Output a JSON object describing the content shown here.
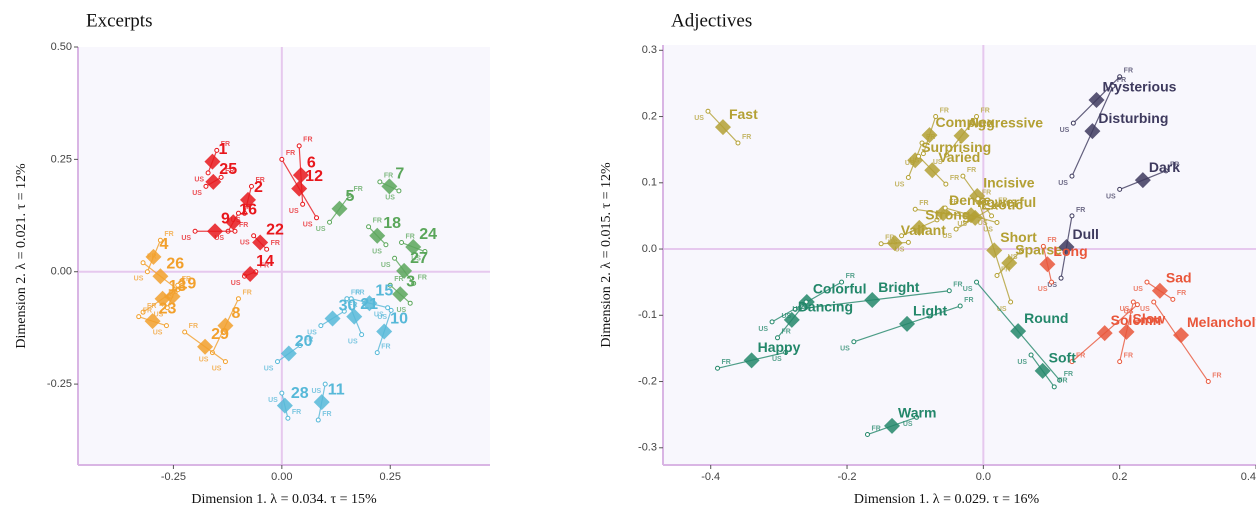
{
  "chart_data": [
    {
      "type": "scatter",
      "title": "Excerpts",
      "xlabel": "Dimension 1.   λ = 0.034.   τ = 15%",
      "ylabel": "Dimension 2.   λ = 0.021.   τ = 12%",
      "xlim": [
        -0.47,
        0.48
      ],
      "ylim": [
        -0.43,
        0.5
      ],
      "xticks": [
        -0.25,
        {
          "value": 0,
          "label": "0.00"
        },
        0.25
      ],
      "yticks": [
        -0.25,
        {
          "value": 0,
          "label": "0.00"
        },
        0.25,
        {
          "value": 0.5,
          "label": "0.50"
        }
      ],
      "partial_labels": [
        "US",
        "FR"
      ],
      "series": [
        {
          "color": "#e8171c",
          "labels": [
            "1",
            "25",
            "2",
            "16",
            "9",
            "6",
            "12",
            "22",
            "14"
          ],
          "x": [
            -0.16,
            -0.158,
            -0.078,
            -0.112,
            -0.154,
            0.044,
            0.04,
            -0.05,
            -0.073
          ],
          "y": [
            0.245,
            0.2,
            0.16,
            0.11,
            0.09,
            0.215,
            0.185,
            0.065,
            -0.005
          ],
          "us_x": [
            -0.17,
            -0.175,
            -0.086,
            -0.124,
            -0.2,
            0.048,
            0.08,
            -0.065,
            -0.086
          ],
          "us_y": [
            0.22,
            0.19,
            0.13,
            0.09,
            0.09,
            0.15,
            0.12,
            0.08,
            -0.01
          ],
          "fr_x": [
            -0.15,
            -0.14,
            -0.07,
            -0.1,
            -0.108,
            0.04,
            0.0,
            -0.035,
            -0.06
          ],
          "fr_y": [
            0.27,
            0.21,
            0.19,
            0.13,
            0.09,
            0.28,
            0.25,
            0.05,
            0.0
          ]
        },
        {
          "color": "#f2a02c",
          "labels": [
            "4",
            "26",
            "19",
            "13",
            "23",
            "8",
            "29"
          ],
          "x": [
            -0.296,
            -0.28,
            -0.252,
            -0.275,
            -0.298,
            -0.13,
            -0.177
          ],
          "y": [
            0.033,
            -0.01,
            -0.055,
            -0.06,
            -0.11,
            -0.12,
            -0.167
          ],
          "us_x": [
            -0.31,
            -0.24,
            -0.264,
            -0.23,
            -0.266,
            -0.16,
            -0.13
          ],
          "us_y": [
            0.0,
            -0.04,
            -0.08,
            -0.03,
            -0.12,
            -0.18,
            -0.2
          ],
          "fr_x": [
            -0.28,
            -0.32,
            -0.24,
            -0.32,
            -0.33,
            -0.1,
            -0.224
          ],
          "fr_y": [
            0.07,
            0.02,
            -0.03,
            -0.09,
            -0.1,
            -0.06,
            -0.134
          ]
        },
        {
          "color": "#5aa65a",
          "labels": [
            "5",
            "7",
            "18",
            "24",
            "27",
            "3"
          ],
          "x": [
            0.133,
            0.248,
            0.22,
            0.303,
            0.282,
            0.273
          ],
          "y": [
            0.14,
            0.19,
            0.08,
            0.055,
            0.002,
            -0.05
          ],
          "us_x": [
            0.11,
            0.27,
            0.24,
            0.33,
            0.26,
            0.296
          ],
          "us_y": [
            0.11,
            0.18,
            0.06,
            0.045,
            0.03,
            -0.07
          ],
          "fr_x": [
            0.156,
            0.226,
            0.2,
            0.276,
            0.304,
            0.25
          ],
          "fr_y": [
            0.17,
            0.2,
            0.1,
            0.065,
            -0.026,
            -0.03
          ]
        },
        {
          "color": "#56b8d8",
          "labels": [
            "15",
            "21",
            "30",
            "10",
            "20",
            "28",
            "11"
          ],
          "x": [
            0.202,
            0.167,
            0.117,
            0.236,
            0.016,
            0.007,
            0.092
          ],
          "y": [
            -0.07,
            -0.1,
            -0.104,
            -0.133,
            -0.182,
            -0.298,
            -0.29
          ],
          "us_x": [
            0.244,
            0.184,
            0.09,
            0.252,
            -0.01,
            0.0,
            0.1
          ],
          "us_y": [
            -0.08,
            -0.14,
            -0.12,
            -0.086,
            -0.2,
            -0.27,
            -0.25
          ],
          "fr_x": [
            0.16,
            0.15,
            0.144,
            0.22,
            0.042,
            0.014,
            0.084
          ],
          "fr_y": [
            -0.06,
            -0.06,
            -0.088,
            -0.18,
            -0.164,
            -0.326,
            -0.33
          ]
        }
      ]
    },
    {
      "type": "scatter",
      "title": "Adjectives",
      "xlabel": "Dimension 1.   λ = 0.029.   τ = 16%",
      "ylabel": "Dimension 2.   λ = 0.015.   τ = 12%",
      "xlim": [
        -0.47,
        0.4
      ],
      "ylim": [
        -0.326,
        0.308
      ],
      "xticks": [
        -0.4,
        -0.2,
        {
          "value": 0,
          "label": "0.0"
        },
        0.2,
        0.4
      ],
      "yticks": [
        -0.3,
        -0.2,
        -0.1,
        {
          "value": 0,
          "label": "0.0"
        },
        0.1,
        0.2,
        0.3
      ],
      "partial_labels": [
        "US",
        "FR"
      ],
      "series": [
        {
          "color": "#b3a034",
          "labels": [
            "Fast",
            "Complex",
            "Aggressive",
            "Surprising",
            "Varied",
            "Incisive",
            "Dense",
            "Powerful",
            "Exotic",
            "Strong",
            "Valiant",
            "Short",
            "Sparse"
          ],
          "x": [
            -0.382,
            -0.079,
            -0.032,
            -0.1,
            -0.075,
            -0.009,
            -0.059,
            -0.018,
            -0.012,
            -0.094,
            -0.13,
            0.016,
            0.038
          ],
          "y": [
            0.184,
            0.172,
            0.171,
            0.134,
            0.119,
            0.08,
            0.054,
            0.051,
            0.047,
            0.032,
            0.009,
            -0.002,
            -0.021
          ],
          "us_x": [
            -0.404,
            -0.088,
            -0.054,
            -0.11,
            -0.095,
            0.012,
            -0.018,
            0.02,
            -0.04,
            -0.12,
            -0.11,
            0.04,
            0.056
          ],
          "us_y": [
            0.208,
            0.144,
            0.142,
            0.108,
            0.14,
            0.05,
            0.048,
            0.04,
            0.03,
            0.02,
            0.01,
            -0.08,
            -0.002
          ],
          "fr_x": [
            -0.36,
            -0.07,
            -0.01,
            -0.09,
            -0.055,
            -0.03,
            -0.1,
            -0.056,
            0.016,
            -0.068,
            -0.15,
            -0.008,
            0.02
          ],
          "fr_y": [
            0.16,
            0.2,
            0.2,
            0.16,
            0.098,
            0.11,
            0.06,
            0.062,
            0.064,
            0.044,
            0.008,
            0.076,
            -0.04
          ]
        },
        {
          "color": "#3e3a5e",
          "labels": [
            "Mysterious",
            "Disturbing",
            "Dark",
            "Dull"
          ],
          "x": [
            0.166,
            0.16,
            0.234,
            0.122
          ],
          "y": [
            0.225,
            0.178,
            0.104,
            0.003
          ],
          "us_x": [
            0.132,
            0.13,
            0.2,
            0.114
          ],
          "us_y": [
            0.19,
            0.11,
            0.09,
            -0.044
          ],
          "fr_x": [
            0.2,
            0.19,
            0.268,
            0.13
          ],
          "fr_y": [
            0.26,
            0.246,
            0.118,
            0.05
          ]
        },
        {
          "color": "#e9563a",
          "labels": [
            "Long",
            "Sad",
            "Slow",
            "Melancholy",
            "Solemn"
          ],
          "x": [
            0.094,
            0.259,
            0.21,
            0.29,
            0.178
          ],
          "y": [
            -0.023,
            -0.063,
            -0.125,
            -0.13,
            -0.127
          ],
          "us_x": [
            0.1,
            0.24,
            0.22,
            0.25,
            0.226
          ],
          "us_y": [
            -0.05,
            -0.05,
            -0.08,
            -0.08,
            -0.084
          ],
          "fr_x": [
            0.088,
            0.278,
            0.2,
            0.33,
            0.13
          ],
          "fr_y": [
            0.004,
            -0.076,
            -0.17,
            -0.2,
            -0.17
          ]
        },
        {
          "color": "#23876a",
          "labels": [
            "Colorful",
            "Bright",
            "Dancing",
            "Happy",
            "Light",
            "Round",
            "Soft",
            "Warm"
          ],
          "x": [
            -0.259,
            -0.163,
            -0.281,
            -0.34,
            -0.112,
            0.051,
            0.087,
            -0.134
          ],
          "y": [
            -0.08,
            -0.077,
            -0.107,
            -0.168,
            -0.113,
            -0.124,
            -0.184,
            -0.267
          ],
          "us_x": [
            -0.31,
            -0.276,
            -0.26,
            -0.29,
            -0.19,
            -0.01,
            0.07,
            -0.098
          ],
          "us_y": [
            -0.11,
            -0.091,
            -0.08,
            -0.156,
            -0.14,
            -0.05,
            -0.16,
            -0.254
          ],
          "fr_x": [
            -0.208,
            -0.05,
            -0.302,
            -0.39,
            -0.034,
            0.112,
            0.104,
            -0.17
          ],
          "fr_y": [
            -0.05,
            -0.063,
            -0.134,
            -0.18,
            -0.086,
            -0.198,
            -0.208,
            -0.28
          ]
        }
      ]
    }
  ]
}
